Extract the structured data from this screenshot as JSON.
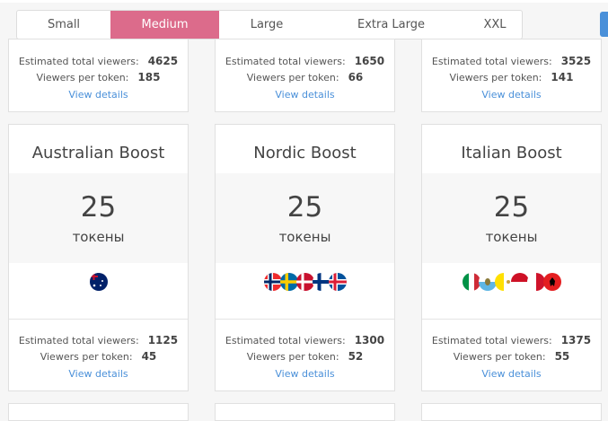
{
  "tabs": [
    {
      "label": "Small",
      "active": false
    },
    {
      "label": "Medium",
      "active": true
    },
    {
      "label": "Large",
      "active": false
    },
    {
      "label": "Extra Large",
      "active": false
    },
    {
      "label": "XXL",
      "active": false
    }
  ],
  "accent_color": "#dc6b8b",
  "link_color": "#4a90d9",
  "labels": {
    "total": "Estimated total viewers:",
    "per_token": "Viewers per token:",
    "details": "View details",
    "unit": "токены"
  },
  "top_cards": [
    {
      "total": "4625",
      "per_token": "185"
    },
    {
      "total": "1650",
      "per_token": "66"
    },
    {
      "total": "3525",
      "per_token": "141"
    }
  ],
  "cards": [
    {
      "title": "Australian Boost",
      "tokens": "25",
      "flags": [
        "australia"
      ],
      "total": "1125",
      "per_token": "45"
    },
    {
      "title": "Nordic Boost",
      "tokens": "25",
      "flags": [
        "norway",
        "sweden",
        "denmark",
        "finland",
        "iceland"
      ],
      "total": "1300",
      "per_token": "52"
    },
    {
      "title": "Italian Boost",
      "tokens": "25",
      "flags": [
        "italy",
        "san-marino",
        "vatican",
        "monaco",
        "malta",
        "albania"
      ],
      "total": "1375",
      "per_token": "55"
    }
  ]
}
